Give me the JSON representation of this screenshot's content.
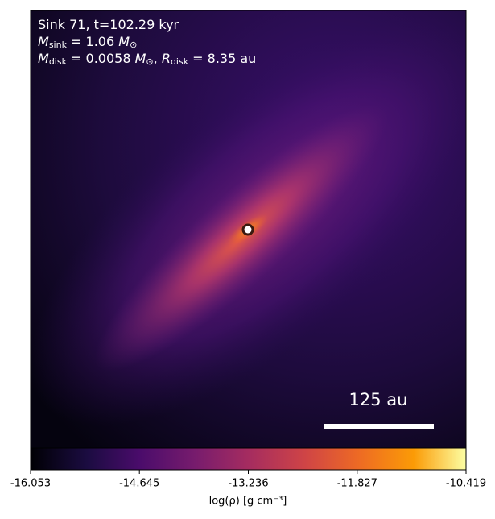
{
  "chart_data": {
    "type": "image",
    "annotation_lines": [
      [
        {
          "text": "Sink 71, t=102.29 kyr"
        }
      ],
      [
        {
          "text": "M",
          "italic": true
        },
        {
          "text": "sink",
          "sub": true
        },
        {
          "text": " = 1.06 "
        },
        {
          "text": "M",
          "italic": true
        },
        {
          "text": "⊙",
          "sub": true
        }
      ],
      [
        {
          "text": "M",
          "italic": true
        },
        {
          "text": "disk",
          "sub": true
        },
        {
          "text": " = 0.0058 "
        },
        {
          "text": "M",
          "italic": true
        },
        {
          "text": "⊙",
          "sub": true
        },
        {
          "text": ", "
        },
        {
          "text": "R",
          "italic": true
        },
        {
          "text": "disk",
          "sub": true
        },
        {
          "text": " = 8.35 au"
        }
      ]
    ],
    "scale_bar_label": "125 au",
    "colorbar": {
      "label": "log(ρ) [g cm⁻³]",
      "xlim": [
        -16.053,
        -10.419
      ],
      "xticks": [
        -16.053,
        -14.645,
        -13.236,
        -11.827,
        -10.419
      ]
    }
  }
}
